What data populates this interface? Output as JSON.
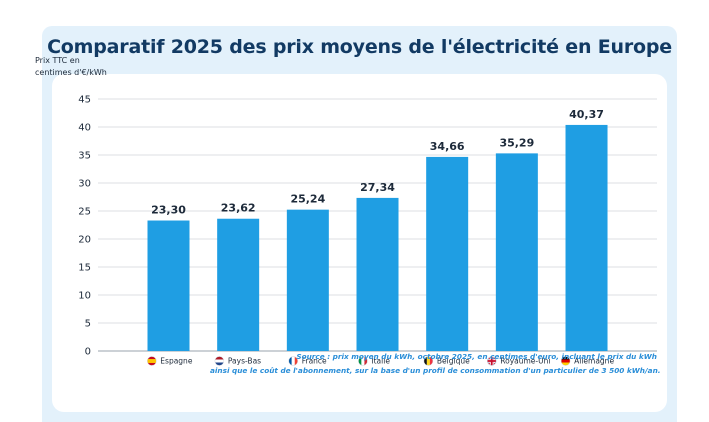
{
  "title": "Comparatif 2025 des prix moyens de l'électricité en Europe",
  "y_axis_label": {
    "line1": "Prix TTC en",
    "line2": "centimes d'€/kWh"
  },
  "source": {
    "line1": "Source : prix moyen du kWh, octobre 2025, en centimes d'euro, incluant le prix du kWh",
    "line2": "ainsi que le coût de l'abonnement, sur la base d'un profil de consommation d'un particulier de 3 500 kWh/an."
  },
  "colors": {
    "bar": "#1f9ee3",
    "grid": "#dcdfe3",
    "text": "#1d2a3a",
    "title": "#123a63"
  },
  "chart_data": {
    "type": "bar",
    "title": "Comparatif 2025 des prix moyens de l'électricité en Europe",
    "ylabel": "Prix TTC en centimes d'€/kWh",
    "xlabel": "",
    "ylim": [
      0,
      45
    ],
    "yticks": [
      0,
      5,
      10,
      15,
      20,
      25,
      30,
      35,
      40,
      45
    ],
    "grid": true,
    "categories": [
      "Espagne",
      "Pays-Bas",
      "France",
      "Italie",
      "Belgique",
      "Royaume-Uni",
      "Allemagne"
    ],
    "values": [
      23.3,
      23.62,
      25.24,
      27.34,
      34.66,
      35.29,
      40.37
    ],
    "value_labels": [
      "23,30",
      "23,62",
      "25,24",
      "27,34",
      "34,66",
      "35,29",
      "40,37"
    ],
    "flags": [
      "flag-spain-icon",
      "flag-netherlands-icon",
      "flag-france-icon",
      "flag-italy-icon",
      "flag-belgium-icon",
      "flag-uk-icon",
      "flag-germany-icon"
    ]
  }
}
